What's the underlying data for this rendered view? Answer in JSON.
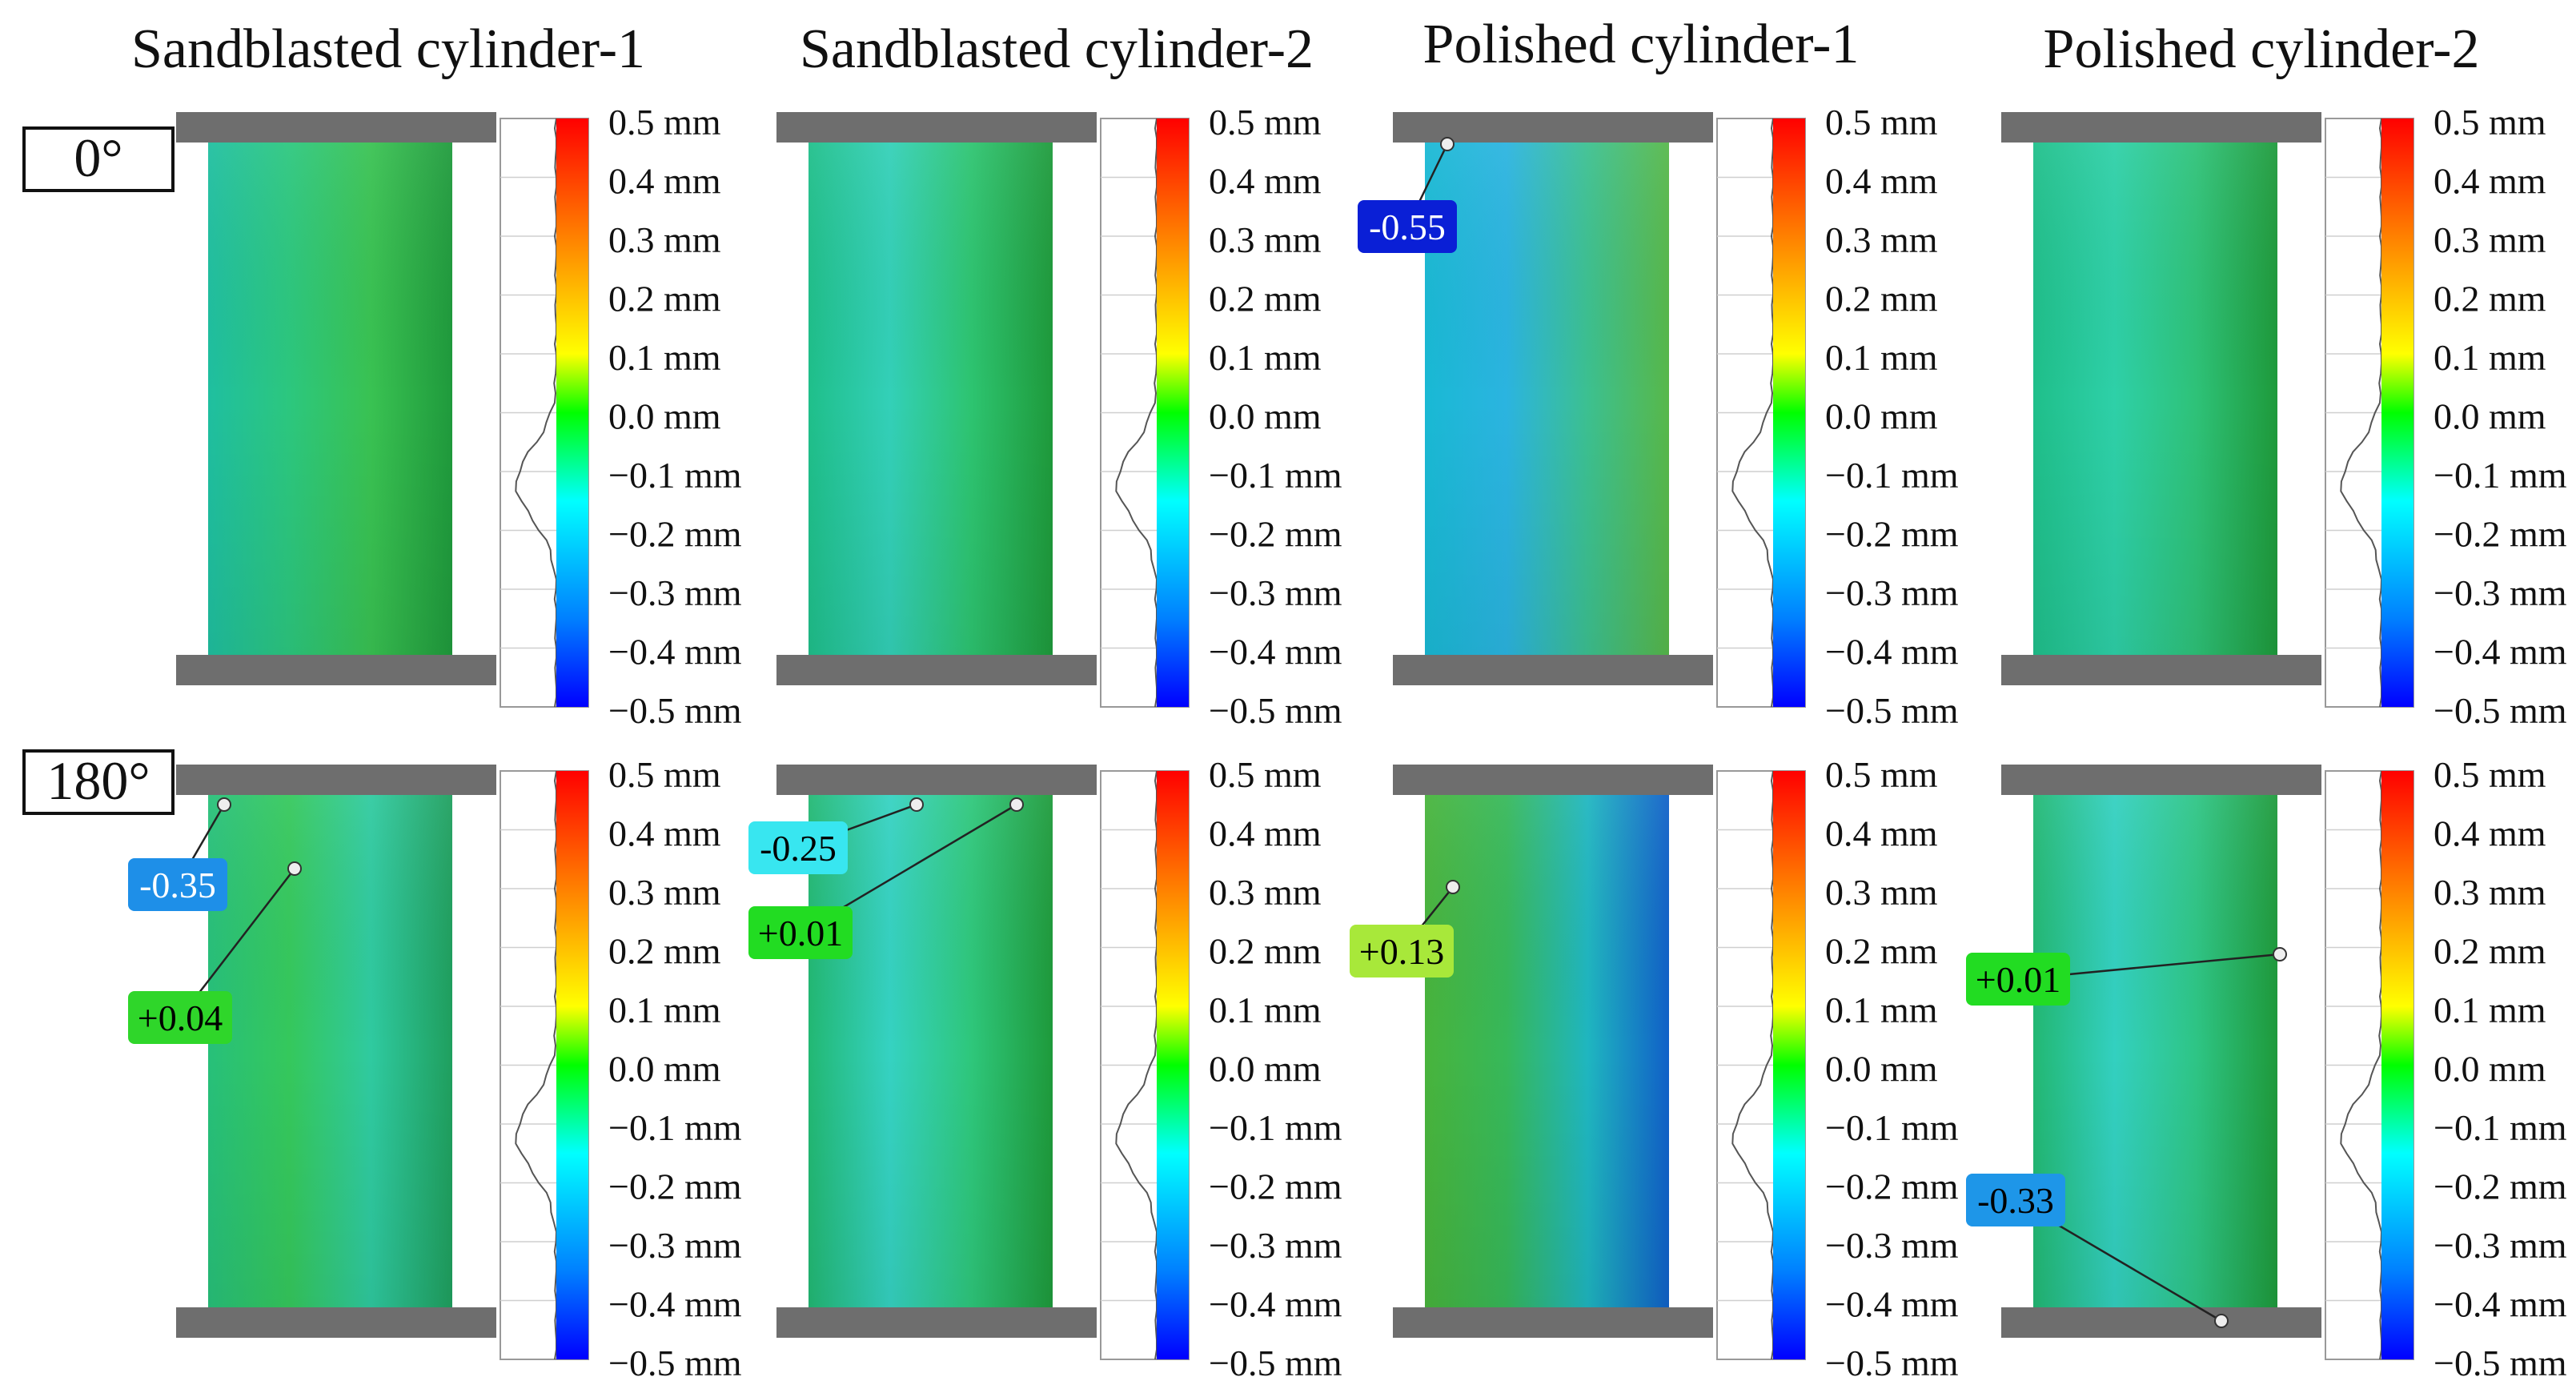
{
  "figure": {
    "column_titles": [
      "Sandblasted cylinder-1",
      "Sandblasted cylinder-2",
      "Polished cylinder-1",
      "Polished cylinder-2"
    ],
    "row_labels": [
      "0°",
      "180°"
    ],
    "colorbar_labels": [
      "0.5 mm",
      "0.4 mm",
      "0.3 mm",
      "0.2 mm",
      "0.1 mm",
      "0.0 mm",
      "−0.1 mm",
      "−0.2 mm",
      "−0.3 mm",
      "−0.4 mm",
      "−0.5 mm"
    ],
    "colorbar_stops": [
      "#ff0000",
      "#ff8000",
      "#ffff00",
      "#00ff00",
      "#00ffff",
      "#0080ff",
      "#0000ff"
    ],
    "panels": [
      {
        "row": 0,
        "col": 0,
        "surface_colors": [
          "#1fbfa0",
          "#2cc77e",
          "#39c252",
          "#1f9a3c"
        ],
        "annotations": []
      },
      {
        "row": 0,
        "col": 1,
        "surface_colors": [
          "#1fbf8a",
          "#33d0b8",
          "#2dc470",
          "#1e9a3b"
        ],
        "annotations": []
      },
      {
        "row": 0,
        "col": 2,
        "surface_colors": [
          "#19b9d4",
          "#2bb4e0",
          "#3cc090",
          "#57b84a"
        ],
        "annotations": [
          {
            "text": "-0.55",
            "bg": "#0a1fd6",
            "fg": "#ffffff"
          }
        ]
      },
      {
        "row": 0,
        "col": 3,
        "surface_colors": [
          "#1fbf8a",
          "#2ed0a8",
          "#2ec278",
          "#1e9a3b"
        ],
        "annotations": []
      },
      {
        "row": 1,
        "col": 0,
        "surface_colors": [
          "#27c07a",
          "#35c85c",
          "#2fcaa0",
          "#1f9f5e"
        ],
        "annotations": [
          {
            "text": "-0.35",
            "bg": "#1e8fe8",
            "fg": "#ffffff"
          },
          {
            "text": "+0.04",
            "bg": "#2fd62a",
            "fg": "#000000"
          }
        ]
      },
      {
        "row": 1,
        "col": 1,
        "surface_colors": [
          "#22b873",
          "#35d2c2",
          "#2ec77b",
          "#1e9a3b"
        ],
        "annotations": [
          {
            "text": "-0.25",
            "bg": "#38e6f0",
            "fg": "#000000"
          },
          {
            "text": "+0.01",
            "bg": "#22dc22",
            "fg": "#000000"
          }
        ]
      },
      {
        "row": 1,
        "col": 2,
        "surface_colors": [
          "#48b43c",
          "#36b85a",
          "#1fb6c0",
          "#1060c8"
        ],
        "annotations": [
          {
            "text": "+0.13",
            "bg": "#a8e83a",
            "fg": "#000000"
          }
        ]
      },
      {
        "row": 1,
        "col": 3,
        "surface_colors": [
          "#22b873",
          "#33d0c0",
          "#2ec585",
          "#1e9a3b"
        ],
        "annotations": [
          {
            "text": "+0.01",
            "bg": "#22dc22",
            "fg": "#000000"
          },
          {
            "text": "-0.33",
            "bg": "#1e96e8",
            "fg": "#000000"
          }
        ]
      }
    ]
  }
}
